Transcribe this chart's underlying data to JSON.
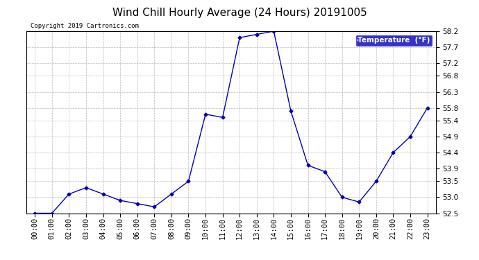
{
  "title": "Wind Chill Hourly Average (24 Hours) 20191005",
  "copyright_text": "Copyright 2019 Cartronics.com",
  "legend_label": "Temperature  (°F)",
  "hours": [
    "00:00",
    "01:00",
    "02:00",
    "03:00",
    "04:00",
    "05:00",
    "06:00",
    "07:00",
    "08:00",
    "09:00",
    "10:00",
    "11:00",
    "12:00",
    "13:00",
    "14:00",
    "15:00",
    "16:00",
    "17:00",
    "18:00",
    "19:00",
    "20:00",
    "21:00",
    "22:00",
    "23:00"
  ],
  "values": [
    52.5,
    52.5,
    53.1,
    53.3,
    53.1,
    52.9,
    52.8,
    52.7,
    53.1,
    53.5,
    55.6,
    55.5,
    58.0,
    58.1,
    58.2,
    55.7,
    54.0,
    53.8,
    53.0,
    52.85,
    53.5,
    54.4,
    54.9,
    55.8
  ],
  "ylim": [
    52.5,
    58.2
  ],
  "yticks": [
    52.5,
    53.0,
    53.5,
    53.9,
    54.4,
    54.9,
    55.4,
    55.8,
    56.3,
    56.8,
    57.2,
    57.7,
    58.2
  ],
  "line_color": "#0000bb",
  "marker": "D",
  "marker_size": 2.5,
  "background_color": "#ffffff",
  "grid_color": "#aaaaaa",
  "title_fontsize": 11,
  "tick_fontsize": 7.5,
  "legend_bg": "#0000bb",
  "legend_text_color": "#ffffff"
}
